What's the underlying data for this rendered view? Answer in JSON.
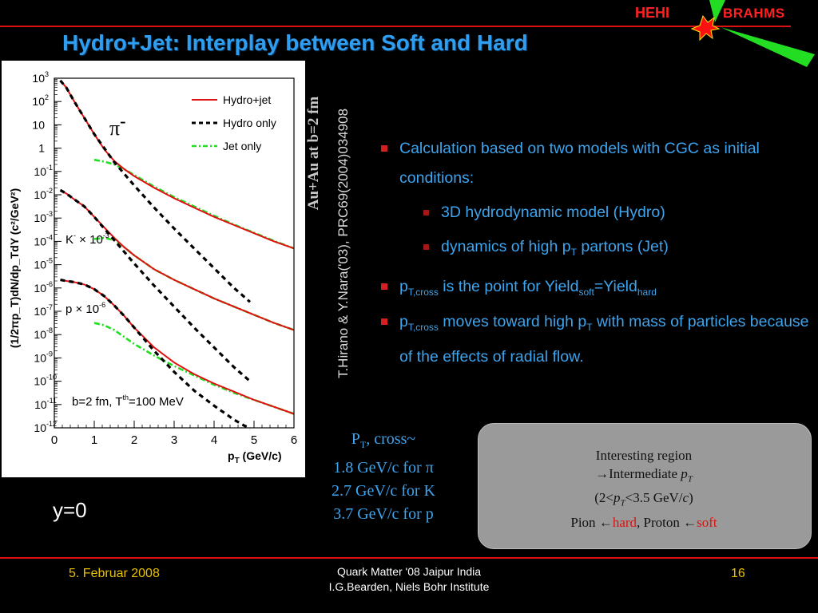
{
  "header": {
    "title": "Hydro+Jet: Interplay between Soft and Hard",
    "logo_left": "HEHI",
    "logo_right": "BRAHMS"
  },
  "colors": {
    "hydro_jet": "#e01010",
    "hydro_only": "#000000",
    "jet_only": "#22dd22",
    "accent": "#3da4ee"
  },
  "chart_data": {
    "type": "line",
    "xlabel_main": "p",
    "xlabel_sub": "T",
    "xlabel_unit": " (GeV/c)",
    "ylabel": "(1/2πp_T)dN/dp_TdY (c²/GeV²)",
    "xlim": [
      0,
      6
    ],
    "ylim_exp": [
      -12,
      3
    ],
    "log_y": true,
    "xticks": [
      "0",
      "1",
      "2",
      "3",
      "4",
      "5",
      "6"
    ],
    "yticks": [
      {
        "exp": 3,
        "base": "10",
        "sup": "3"
      },
      {
        "exp": 2,
        "base": "10",
        "sup": "2"
      },
      {
        "exp": 1,
        "base": "10",
        "sup": ""
      },
      {
        "exp": 0,
        "base": "1",
        "sup": ""
      },
      {
        "exp": -1,
        "base": "10",
        "sup": "-1"
      },
      {
        "exp": -2,
        "base": "10",
        "sup": "-2"
      },
      {
        "exp": -3,
        "base": "10",
        "sup": "-3"
      },
      {
        "exp": -4,
        "base": "10",
        "sup": "-4"
      },
      {
        "exp": -5,
        "base": "10",
        "sup": "-5"
      },
      {
        "exp": -6,
        "base": "10",
        "sup": "-6"
      },
      {
        "exp": -7,
        "base": "10",
        "sup": "-7"
      },
      {
        "exp": -8,
        "base": "10",
        "sup": "-8"
      },
      {
        "exp": -9,
        "base": "10",
        "sup": "-9"
      },
      {
        "exp": -10,
        "base": "10",
        "sup": "-10"
      },
      {
        "exp": -11,
        "base": "10",
        "sup": "-11"
      },
      {
        "exp": -12,
        "base": "10",
        "sup": "-12"
      }
    ],
    "legend": [
      {
        "name": "Hydro+jet",
        "style": "solid",
        "color": "#e01010"
      },
      {
        "name": "Hydro only",
        "style": "dashed",
        "color": "#000000"
      },
      {
        "name": "Jet only",
        "style": "dashdot",
        "color": "#22dd22"
      }
    ],
    "legend_position": "top-right",
    "annotations": {
      "pion": "π",
      "pion_sup": "-",
      "kaon": "K",
      "kaon_sup": "-",
      "kaon_scale": " × 10",
      "kaon_scale_sup": "-3",
      "proton": "p × 10",
      "proton_sup": "-6",
      "params": "b=2 fm, T",
      "params_sup": "th",
      "params_tail": "=100 MeV"
    },
    "groups": [
      {
        "particle": "π-",
        "hydro_jet": {
          "x": [
            0.15,
            0.3,
            0.5,
            0.75,
            1.0,
            1.25,
            1.5,
            1.75,
            2.0,
            2.5,
            3.0,
            3.5,
            4.0,
            4.5,
            5.0,
            5.5,
            6.0
          ],
          "log10y": [
            2.9,
            2.6,
            2.0,
            1.3,
            0.6,
            -0.05,
            -0.55,
            -0.9,
            -1.2,
            -1.7,
            -2.15,
            -2.55,
            -2.95,
            -3.3,
            -3.65,
            -4.0,
            -4.3
          ]
        },
        "hydro_only": {
          "x": [
            0.15,
            0.3,
            0.5,
            0.75,
            1.0,
            1.25,
            1.5,
            1.75,
            2.0,
            2.5,
            3.0,
            3.5,
            4.0,
            4.5,
            4.9
          ],
          "log10y": [
            2.9,
            2.6,
            2.0,
            1.3,
            0.6,
            0.0,
            -0.6,
            -1.1,
            -1.6,
            -2.55,
            -3.45,
            -4.3,
            -5.15,
            -6.0,
            -6.6
          ]
        },
        "jet_only": {
          "x": [
            1.0,
            1.25,
            1.5,
            1.75,
            2.0,
            2.5,
            3.0,
            3.5,
            4.0,
            4.5,
            5.0,
            5.5,
            6.0
          ],
          "log10y": [
            -0.5,
            -0.58,
            -0.7,
            -0.9,
            -1.15,
            -1.65,
            -2.1,
            -2.5,
            -2.9,
            -3.28,
            -3.63,
            -3.98,
            -4.3
          ]
        }
      },
      {
        "particle": "K- × 10^-3",
        "hydro_jet": {
          "x": [
            0.15,
            0.3,
            0.5,
            0.75,
            1.0,
            1.25,
            1.5,
            1.75,
            2.0,
            2.5,
            3.0,
            3.5,
            4.0,
            4.5,
            5.0,
            5.5,
            6.0
          ],
          "log10y": [
            -1.8,
            -1.95,
            -2.2,
            -2.5,
            -2.95,
            -3.4,
            -3.85,
            -4.25,
            -4.6,
            -5.2,
            -5.65,
            -6.05,
            -6.45,
            -6.8,
            -7.15,
            -7.5,
            -7.8
          ]
        },
        "hydro_only": {
          "x": [
            0.15,
            0.3,
            0.5,
            0.75,
            1.0,
            1.25,
            1.5,
            1.75,
            2.0,
            2.5,
            3.0,
            3.5,
            4.0,
            4.5,
            4.9
          ],
          "log10y": [
            -1.8,
            -1.95,
            -2.2,
            -2.5,
            -2.95,
            -3.45,
            -3.95,
            -4.45,
            -4.95,
            -5.9,
            -6.8,
            -7.7,
            -8.55,
            -9.4,
            -10.0
          ]
        },
        "jet_only": {
          "x": [
            1.0,
            1.25,
            1.5,
            1.75,
            2.0,
            2.5,
            3.0,
            3.5,
            4.0,
            4.5,
            5.0,
            5.5,
            6.0
          ],
          "log10y": [
            -3.9,
            -3.85,
            -3.95,
            -4.25,
            -4.6,
            -5.2,
            -5.65,
            -6.05,
            -6.45,
            -6.8,
            -7.15,
            -7.5,
            -7.8
          ]
        }
      },
      {
        "particle": "p × 10^-6",
        "hydro_jet": {
          "x": [
            0.15,
            0.3,
            0.5,
            0.75,
            1.0,
            1.25,
            1.5,
            1.75,
            2.0,
            2.5,
            3.0,
            3.5,
            4.0,
            4.5,
            5.0,
            5.5,
            6.0
          ],
          "log10y": [
            -5.65,
            -5.7,
            -5.75,
            -5.85,
            -6.05,
            -6.35,
            -6.75,
            -7.2,
            -7.7,
            -8.55,
            -9.2,
            -9.7,
            -10.1,
            -10.45,
            -10.8,
            -11.1,
            -11.4
          ]
        },
        "hydro_only": {
          "x": [
            0.15,
            0.3,
            0.5,
            0.75,
            1.0,
            1.25,
            1.5,
            1.75,
            2.0,
            2.5,
            3.0,
            3.5,
            4.0,
            4.5,
            4.9
          ],
          "log10y": [
            -5.65,
            -5.7,
            -5.75,
            -5.85,
            -6.05,
            -6.35,
            -6.75,
            -7.2,
            -7.7,
            -8.7,
            -9.6,
            -10.4,
            -11.05,
            -11.65,
            -12.05
          ]
        },
        "jet_only": {
          "x": [
            1.0,
            1.25,
            1.5,
            1.75,
            2.0,
            2.5,
            3.0,
            3.5,
            4.0,
            4.5,
            5.0,
            5.5,
            6.0
          ],
          "log10y": [
            -7.5,
            -7.6,
            -7.8,
            -8.1,
            -8.4,
            -8.9,
            -9.35,
            -9.75,
            -10.15,
            -10.5,
            -10.8,
            -11.1,
            -11.4
          ]
        }
      }
    ]
  },
  "sidebar": {
    "rapidity": "y=0",
    "system": "Au+Au at b=2 fm",
    "reference": "T.Hirano & Y.Nara('03), PRC69(2004)034908"
  },
  "bullets": {
    "b1": "Calculation based on two models with CGC as initial conditions:",
    "b1a": "3D hydrodynamic model (Hydro)",
    "b1b_pre": "dynamics of high p",
    "b1b_sub": "T",
    "b1b_post": " partons (Jet)",
    "b2_p": "p",
    "b2_sub": "T,cross",
    "b2_mid": " is the point for Yield",
    "b2_soft": "soft",
    "b2_eq": "=Yield",
    "b2_hard": "hard",
    "b3_p": "p",
    "b3_sub": "T,cross",
    "b3_mid": " moves toward high p",
    "b3_sub2": "T",
    "b3_post": " with mass of particles because of the effects of radial flow."
  },
  "ptcross": {
    "head_p": "P",
    "head_sub": "T",
    "head_rest": ", cross~",
    "pion": "1.8 GeV/c for π",
    "kaon": "2.7 GeV/c for K",
    "proton": "3.7 GeV/c for p"
  },
  "box": {
    "line1": "Interesting region",
    "line2_arrow": "→",
    "line2": "Intermediate ",
    "line2_pt": "p",
    "line2_sub": "T",
    "line3_open": "(2<",
    "line3_pt": "p",
    "line3_sub": "T",
    "line3_close": "<3.5 GeV/",
    "line3_c": "c",
    "line3_end": ")",
    "line4_pion": "Pion ",
    "line4_arrow1": "←",
    "line4_hard": "hard",
    "line4_sep": ", Proton ",
    "line4_arrow2": "←",
    "line4_soft": "soft"
  },
  "footer": {
    "date": "5. Februar 2008",
    "conf_line1": "Quark Matter '08 Jaipur India",
    "conf_line2": "I.G.Bearden, Niels Bohr Institute",
    "page": "16"
  }
}
